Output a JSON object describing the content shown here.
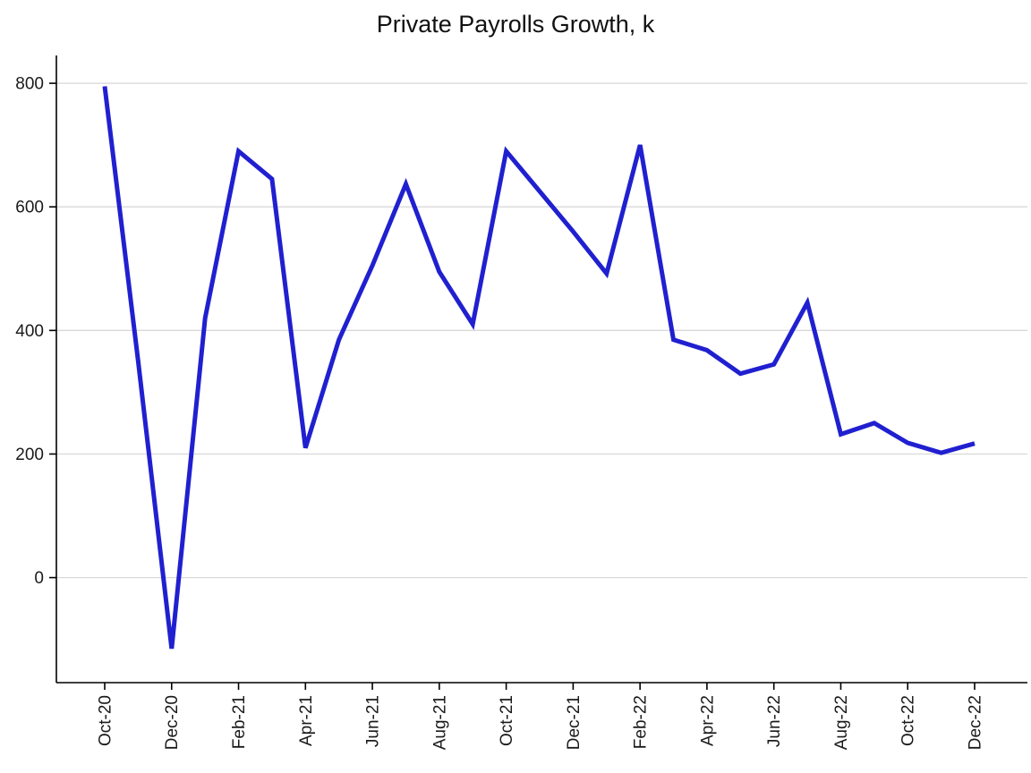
{
  "chart_data": {
    "type": "line",
    "title": "Private Payrolls Growth, k",
    "x": [
      "Oct-20",
      "Nov-20",
      "Dec-20",
      "Jan-21",
      "Feb-21",
      "Mar-21",
      "Apr-21",
      "May-21",
      "Jun-21",
      "Jul-21",
      "Aug-21",
      "Sep-21",
      "Oct-21",
      "Nov-21",
      "Dec-21",
      "Jan-22",
      "Feb-22",
      "Mar-22",
      "Apr-22",
      "May-22",
      "Jun-22",
      "Jul-22",
      "Aug-22",
      "Sep-22",
      "Oct-22",
      "Nov-22",
      "Dec-22"
    ],
    "values": [
      795,
      350,
      -115,
      420,
      690,
      645,
      210,
      385,
      505,
      637,
      495,
      410,
      690,
      625,
      560,
      492,
      700,
      385,
      368,
      330,
      345,
      445,
      232,
      250,
      218,
      202,
      217
    ],
    "x_tick_labels": [
      "Oct-20",
      "Dec-20",
      "Feb-21",
      "Apr-21",
      "Jun-21",
      "Aug-21",
      "Oct-21",
      "Dec-21",
      "Feb-22",
      "Apr-22",
      "Jun-22",
      "Aug-22",
      "Oct-22",
      "Dec-22"
    ],
    "x_tick_every": 2,
    "y_ticks": [
      0,
      200,
      400,
      600,
      800
    ],
    "ylim": [
      -170,
      845
    ],
    "grid": "horizontal",
    "legend": "none",
    "line_color": "#2020d0",
    "axis_color": "#000000",
    "grid_color": "#d9d9d9",
    "tick_color": "#000000",
    "background": "#ffffff"
  }
}
